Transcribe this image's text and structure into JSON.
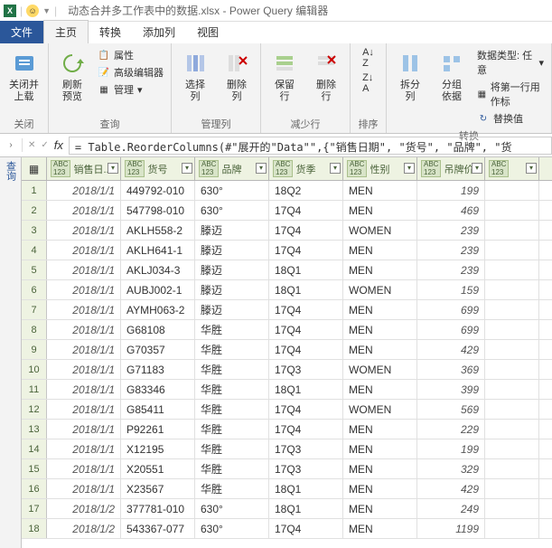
{
  "title": {
    "filename": "动态合并多工作表中的数据.xlsx",
    "app": "Power Query 编辑器"
  },
  "tabs": {
    "file": "文件",
    "home": "主页",
    "transform": "转换",
    "addcol": "添加列",
    "view": "视图"
  },
  "ribbon": {
    "close": {
      "big": "关闭并\n上载",
      "group": "关闭"
    },
    "query": {
      "big": "刷新\n预览",
      "m1": "属性",
      "m2": "高级编辑器",
      "m3": "管理",
      "group": "查询"
    },
    "managecol": {
      "b1": "选择\n列",
      "b2": "删除\n列",
      "group": "管理列"
    },
    "reducerow": {
      "b1": "保留\n行",
      "b2": "删除\n行",
      "group": "减少行"
    },
    "sort": {
      "group": "排序"
    },
    "split": {
      "b1": "拆分\n列",
      "b2": "分组\n依据",
      "group": "转换"
    },
    "transform": {
      "m1": "数据类型: 任意",
      "m2": "将第一行用作标",
      "m3": "替换值"
    }
  },
  "formula": "= Table.ReorderColumns(#\"展开的\"Data\"\",{\"销售日期\", \"货号\", \"品牌\", \"货",
  "sidepane": "查询",
  "columns": [
    {
      "type": "ABC\n123",
      "label": "销售日..."
    },
    {
      "type": "ABC\n123",
      "label": "货号"
    },
    {
      "type": "ABC\n123",
      "label": "品牌"
    },
    {
      "type": "ABC\n123",
      "label": "货季"
    },
    {
      "type": "ABC\n123",
      "label": "性别"
    },
    {
      "type": "ABC\n123",
      "label": "吊牌价"
    },
    {
      "type": "ABC\n123",
      "label": ""
    }
  ],
  "rows": [
    [
      "2018/1/1",
      "449792-010",
      "630°",
      "18Q2",
      "MEN",
      "199"
    ],
    [
      "2018/1/1",
      "547798-010",
      "630°",
      "17Q4",
      "MEN",
      "469"
    ],
    [
      "2018/1/1",
      "AKLH558-2",
      "滕迈",
      "17Q4",
      "WOMEN",
      "239"
    ],
    [
      "2018/1/1",
      "AKLH641-1",
      "滕迈",
      "17Q4",
      "MEN",
      "239"
    ],
    [
      "2018/1/1",
      "AKLJ034-3",
      "滕迈",
      "18Q1",
      "MEN",
      "239"
    ],
    [
      "2018/1/1",
      "AUBJ002-1",
      "滕迈",
      "18Q1",
      "WOMEN",
      "159"
    ],
    [
      "2018/1/1",
      "AYMH063-2",
      "滕迈",
      "17Q4",
      "MEN",
      "699"
    ],
    [
      "2018/1/1",
      "G68108",
      "华胜",
      "17Q4",
      "MEN",
      "699"
    ],
    [
      "2018/1/1",
      "G70357",
      "华胜",
      "17Q4",
      "MEN",
      "429"
    ],
    [
      "2018/1/1",
      "G71183",
      "华胜",
      "17Q3",
      "WOMEN",
      "369"
    ],
    [
      "2018/1/1",
      "G83346",
      "华胜",
      "18Q1",
      "MEN",
      "399"
    ],
    [
      "2018/1/1",
      "G85411",
      "华胜",
      "17Q4",
      "WOMEN",
      "569"
    ],
    [
      "2018/1/1",
      "P92261",
      "华胜",
      "17Q4",
      "MEN",
      "229"
    ],
    [
      "2018/1/1",
      "X12195",
      "华胜",
      "17Q3",
      "MEN",
      "199"
    ],
    [
      "2018/1/1",
      "X20551",
      "华胜",
      "17Q3",
      "MEN",
      "329"
    ],
    [
      "2018/1/1",
      "X23567",
      "华胜",
      "18Q1",
      "MEN",
      "429"
    ],
    [
      "2018/1/2",
      "377781-010",
      "630°",
      "18Q1",
      "MEN",
      "249"
    ],
    [
      "2018/1/2",
      "543367-077",
      "630°",
      "17Q4",
      "MEN",
      "1199"
    ]
  ],
  "colors": {
    "accent": "#2b579a",
    "excel": "#217346",
    "header_bg": "#eef3e2",
    "header_fg": "#4a633a",
    "ribbon_bg": "#f3f3f3"
  }
}
